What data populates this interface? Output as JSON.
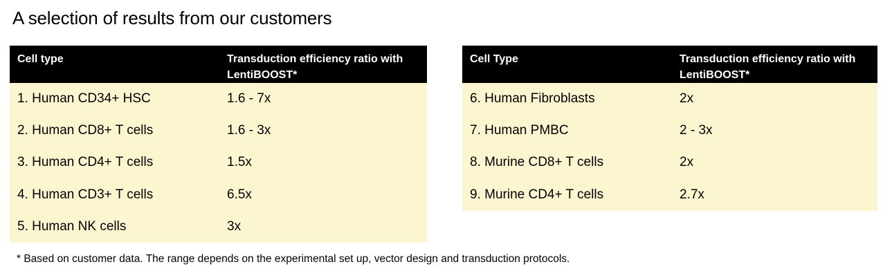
{
  "page": {
    "title": "A selection of results from our customers",
    "footnote": "* Based on customer data. The range depends on the experimental set up, vector design and transduction protocols."
  },
  "colors": {
    "header_bg": "#000000",
    "header_text": "#ffffff",
    "body_bg": "#fcf6d0",
    "body_text": "#000000"
  },
  "tables": [
    {
      "header": {
        "cell_type": "Cell type",
        "ratio": "Transduction efficiency ratio with LentiBOOST*"
      },
      "rows": [
        {
          "cell_type": "1. Human CD34+ HSC",
          "ratio": "1.6 - 7x"
        },
        {
          "cell_type": "2. Human CD8+ T cells",
          "ratio": "1.6 - 3x"
        },
        {
          "cell_type": "3. Human CD4+ T cells",
          "ratio": "1.5x"
        },
        {
          "cell_type": "4. Human CD3+ T cells",
          "ratio": "6.5x"
        },
        {
          "cell_type": "5. Human NK cells",
          "ratio": "3x"
        }
      ]
    },
    {
      "header": {
        "cell_type": "Cell Type",
        "ratio": "Transduction efficiency ratio with LentiBOOST*"
      },
      "rows": [
        {
          "cell_type": "6. Human Fibroblasts",
          "ratio": "2x"
        },
        {
          "cell_type": "7. Human PMBC",
          "ratio": "2 - 3x"
        },
        {
          "cell_type": "8. Murine CD8+ T cells",
          "ratio": "2x"
        },
        {
          "cell_type": "9. Murine CD4+ T cells",
          "ratio": "2.7x"
        }
      ]
    }
  ]
}
